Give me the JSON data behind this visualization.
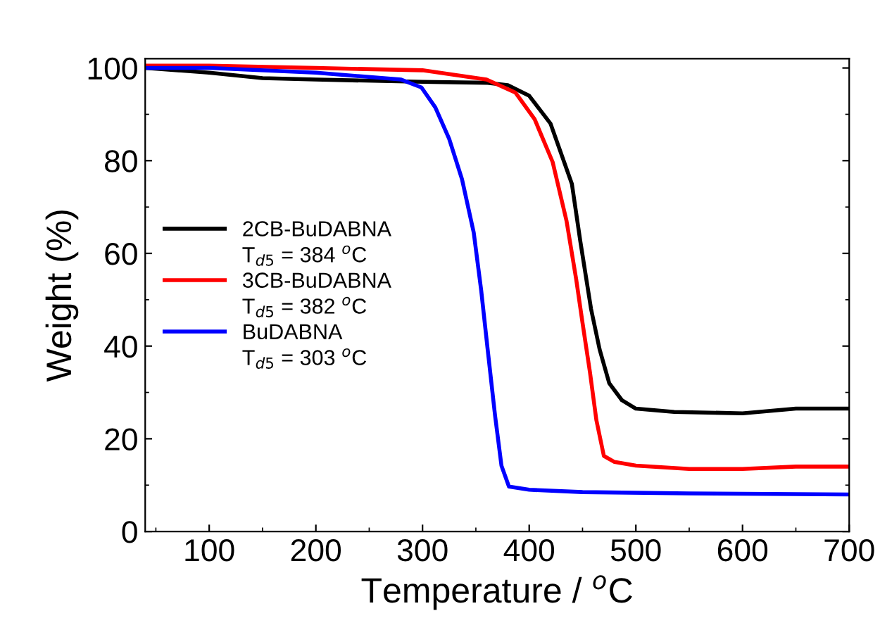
{
  "chart_data": {
    "type": "line",
    "xlabel": "Temperature / $^{o}$C",
    "ylabel": "Weight (%)",
    "xlim": [
      40,
      700
    ],
    "ylim": [
      0,
      102
    ],
    "xticks": [
      100,
      200,
      300,
      400,
      500,
      600,
      700
    ],
    "yticks": [
      0,
      20,
      40,
      60,
      80,
      100
    ],
    "grid": false,
    "legend": "left",
    "marker": "none",
    "line_style": "solid",
    "annotations": [
      "T$_{d5}$ = 384 $^{o}$C",
      "T$_{d5}$ = 382 $^{o}$C",
      "T$_{d5}$ = 303 $^{o}$C"
    ],
    "series": [
      {
        "name": "2CB-BuDABNA",
        "color": "#000000",
        "x": [
          40,
          100,
          150,
          200,
          300,
          361,
          380,
          400,
          420,
          440,
          448,
          458,
          466,
          475,
          487,
          500,
          536,
          600,
          650,
          700
        ],
        "values": [
          100,
          99,
          97.8,
          97.5,
          97,
          96.8,
          96.3,
          94,
          88,
          75,
          62.5,
          48,
          39.3,
          32,
          28.3,
          26.5,
          25.8,
          25.5,
          26.5,
          26.5
        ]
      },
      {
        "name": "3CB-BuDABNA",
        "color": "#ff0000",
        "x": [
          40,
          100,
          200,
          300,
          360,
          387,
          405,
          422,
          435,
          444,
          450,
          457,
          463,
          470,
          480,
          500,
          550,
          600,
          650,
          700
        ],
        "values": [
          100.5,
          100.5,
          100,
          99.5,
          97.5,
          94.7,
          89,
          79.7,
          67,
          54.5,
          45,
          34.3,
          24,
          16.3,
          15,
          14.2,
          13.5,
          13.5,
          14,
          14
        ]
      },
      {
        "name": "BuDABNA",
        "color": "#0000ff",
        "x": [
          40,
          100,
          200,
          280,
          299,
          312,
          325,
          337,
          348,
          355,
          361,
          368,
          374,
          381,
          400,
          450,
          550,
          700
        ],
        "values": [
          100,
          100,
          99,
          97.5,
          95.8,
          91.5,
          84.7,
          76,
          64.5,
          52,
          39.4,
          25,
          14.2,
          9.7,
          9,
          8.5,
          8.2,
          8
        ]
      }
    ]
  }
}
